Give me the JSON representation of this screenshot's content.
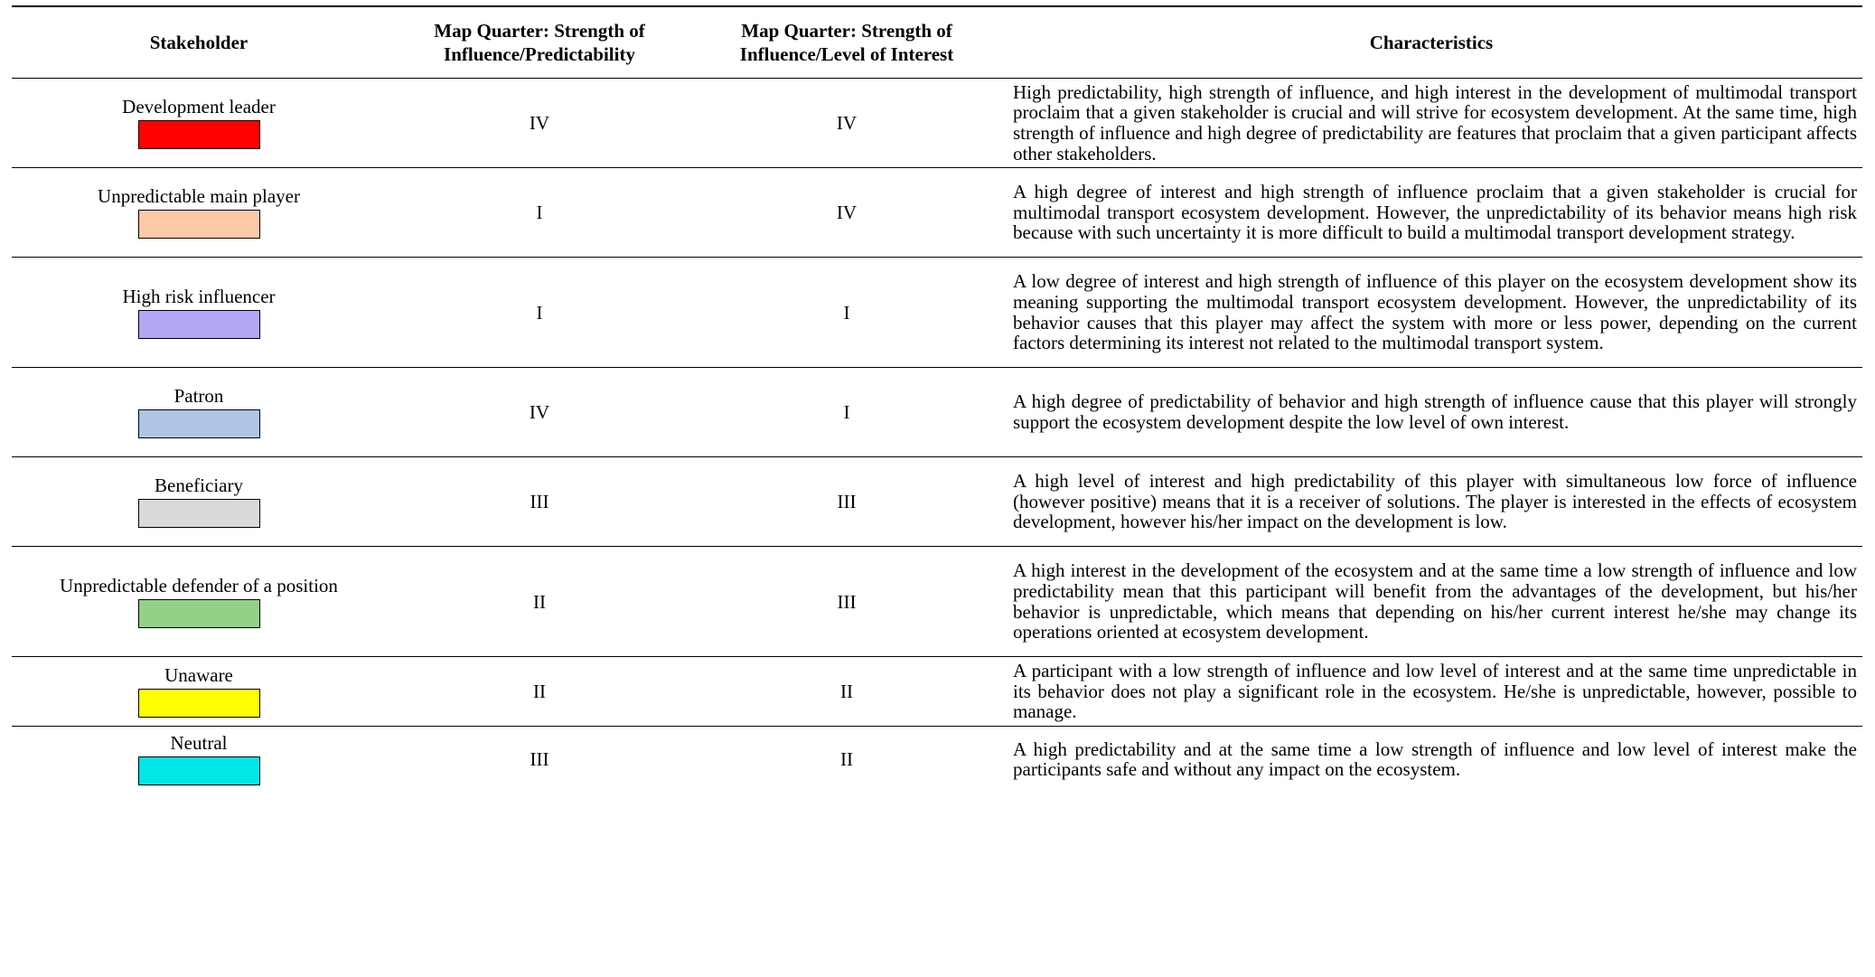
{
  "table": {
    "headers": {
      "stakeholder": "Stakeholder",
      "predictability_line1": "Map Quarter: Strength of",
      "predictability_line2": "Influence/Predictability",
      "interest_line1": "Map Quarter: Strength of",
      "interest_line2": "Influence/Level of Interest",
      "characteristics": "Characteristics"
    },
    "rows": [
      {
        "stakeholder": "Development leader",
        "color": "#ff0000",
        "predictability": "IV",
        "interest": "IV",
        "characteristics": "High predictability, high strength of influence, and high interest in the development of multimodal transport proclaim that a given stakeholder is crucial and will strive for ecosystem development. At the same time, high strength of influence and high degree of predictability are features that proclaim that a given participant affects other stakeholders."
      },
      {
        "stakeholder": "Unpredictable main player",
        "color": "#fbc9a7",
        "predictability": "I",
        "interest": "IV",
        "characteristics": "A high degree of interest and high strength of influence proclaim that a given stakeholder is crucial for multimodal transport ecosystem development. However, the unpredictability of its behavior means high risk because with such uncertainty it is more difficult to build a multimodal transport development strategy."
      },
      {
        "stakeholder": "High risk influencer",
        "color": "#b4a7f5",
        "predictability": "I",
        "interest": "I",
        "characteristics": "A low degree of interest and high strength of influence of this player on the ecosystem development show its meaning supporting the multimodal transport ecosystem development. However, the unpredictability of its behavior causes that this player may affect the system with more or less power, depending on the current factors determining its interest not related to the multimodal transport system."
      },
      {
        "stakeholder": "Patron",
        "color": "#aec5e6",
        "predictability": "IV",
        "interest": "I",
        "characteristics": "A high degree of predictability of behavior and high strength of influence cause that this player will strongly support the ecosystem development despite the low level of own interest."
      },
      {
        "stakeholder": "Beneficiary",
        "color": "#d9d9d9",
        "predictability": "III",
        "interest": "III",
        "characteristics": "A high level of interest and high predictability of this player with simultaneous low force of influence (however positive) means that it is a receiver of solutions. The player is interested in the effects of ecosystem development, however his/her impact on the development is low."
      },
      {
        "stakeholder": "Unpredictable defender of a position",
        "color": "#93d188",
        "predictability": "II",
        "interest": "III",
        "characteristics": "A high interest in the development of the ecosystem and at the same time a low strength of influence and low predictability mean that this participant will benefit from the advantages of the development, but his/her behavior is unpredictable, which means that depending on his/her current interest he/she may change its operations oriented at ecosystem development."
      },
      {
        "stakeholder": "Unaware",
        "color": "#ffff00",
        "predictability": "II",
        "interest": "II",
        "characteristics": "A participant with a low strength of influence and low level of interest and at the same time unpredictable in its behavior does not play a significant role in the ecosystem. He/she is unpredictable, however, possible to manage."
      },
      {
        "stakeholder": "Neutral",
        "color": "#00e5e5",
        "predictability": "III",
        "interest": "II",
        "characteristics": "A high predictability and at the same time a low strength of influence and low level of interest make the participants safe and without any impact on the ecosystem."
      }
    ]
  }
}
